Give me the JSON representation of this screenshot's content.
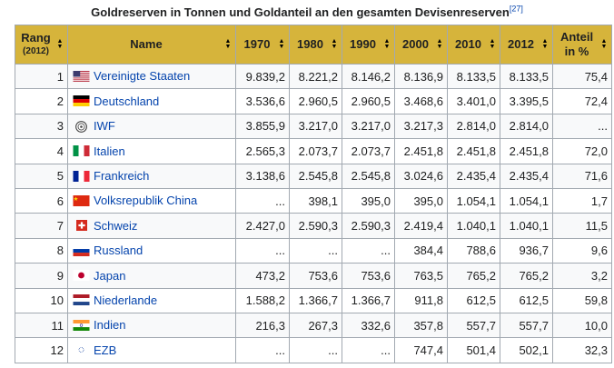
{
  "caption": "Goldreserven in Tonnen und Goldanteil an den gesamten Devisenreserven",
  "caption_ref": "[27]",
  "columns": [
    {
      "label": "Rang",
      "sub": "(2012)"
    },
    {
      "label": "Name",
      "sub": ""
    },
    {
      "label": "1970",
      "sub": ""
    },
    {
      "label": "1980",
      "sub": ""
    },
    {
      "label": "1990",
      "sub": ""
    },
    {
      "label": "2000",
      "sub": ""
    },
    {
      "label": "2010",
      "sub": ""
    },
    {
      "label": "2012",
      "sub": ""
    },
    {
      "label": "Anteil",
      "sub": "in %"
    }
  ],
  "sort_icon": "sort-arrows-icon",
  "colors": {
    "header_bg": "#d6b43b",
    "link": "#0645ad",
    "border": "#a2a9b1"
  },
  "rows": [
    {
      "rank": "1",
      "name": "Vereinigte Staaten",
      "flag": "usa-flag-icon",
      "y1970": "9.839,2",
      "y1980": "8.221,2",
      "y1990": "8.146,2",
      "y2000": "8.136,9",
      "y2010": "8.133,5",
      "y2012": "8.133,5",
      "share": "75,4"
    },
    {
      "rank": "2",
      "name": "Deutschland",
      "flag": "germany-flag-icon",
      "y1970": "3.536,6",
      "y1980": "2.960,5",
      "y1990": "2.960,5",
      "y2000": "3.468,6",
      "y2010": "3.401,0",
      "y2012": "3.395,5",
      "share": "72,4"
    },
    {
      "rank": "3",
      "name": "IWF",
      "flag": "imf-logo-icon",
      "y1970": "3.855,9",
      "y1980": "3.217,0",
      "y1990": "3.217,0",
      "y2000": "3.217,3",
      "y2010": "2.814,0",
      "y2012": "2.814,0",
      "share": "..."
    },
    {
      "rank": "4",
      "name": "Italien",
      "flag": "italy-flag-icon",
      "y1970": "2.565,3",
      "y1980": "2.073,7",
      "y1990": "2.073,7",
      "y2000": "2.451,8",
      "y2010": "2.451,8",
      "y2012": "2.451,8",
      "share": "72,0"
    },
    {
      "rank": "5",
      "name": "Frankreich",
      "flag": "france-flag-icon",
      "y1970": "3.138,6",
      "y1980": "2.545,8",
      "y1990": "2.545,8",
      "y2000": "3.024,6",
      "y2010": "2.435,4",
      "y2012": "2.435,4",
      "share": "71,6"
    },
    {
      "rank": "6",
      "name": "Volksrepublik China",
      "flag": "china-flag-icon",
      "y1970": "...",
      "y1980": "398,1",
      "y1990": "395,0",
      "y2000": "395,0",
      "y2010": "1.054,1",
      "y2012": "1.054,1",
      "share": "1,7"
    },
    {
      "rank": "7",
      "name": "Schweiz",
      "flag": "switzerland-flag-icon",
      "y1970": "2.427,0",
      "y1980": "2.590,3",
      "y1990": "2.590,3",
      "y2000": "2.419,4",
      "y2010": "1.040,1",
      "y2012": "1.040,1",
      "share": "11,5"
    },
    {
      "rank": "8",
      "name": "Russland",
      "flag": "russia-flag-icon",
      "y1970": "...",
      "y1980": "...",
      "y1990": "...",
      "y2000": "384,4",
      "y2010": "788,6",
      "y2012": "936,7",
      "share": "9,6"
    },
    {
      "rank": "9",
      "name": "Japan",
      "flag": "japan-flag-icon",
      "y1970": "473,2",
      "y1980": "753,6",
      "y1990": "753,6",
      "y2000": "763,5",
      "y2010": "765,2",
      "y2012": "765,2",
      "share": "3,2"
    },
    {
      "rank": "10",
      "name": "Niederlande",
      "flag": "netherlands-flag-icon",
      "y1970": "1.588,2",
      "y1980": "1.366,7",
      "y1990": "1.366,7",
      "y2000": "911,8",
      "y2010": "612,5",
      "y2012": "612,5",
      "share": "59,8"
    },
    {
      "rank": "11",
      "name": "Indien",
      "flag": "india-flag-icon",
      "y1970": "216,3",
      "y1980": "267,3",
      "y1990": "332,6",
      "y2000": "357,8",
      "y2010": "557,7",
      "y2012": "557,7",
      "share": "10,0"
    },
    {
      "rank": "12",
      "name": "EZB",
      "flag": "eu-flag-icon",
      "y1970": "...",
      "y1980": "...",
      "y1990": "...",
      "y2000": "747,4",
      "y2010": "501,4",
      "y2012": "502,1",
      "share": "32,3"
    }
  ]
}
